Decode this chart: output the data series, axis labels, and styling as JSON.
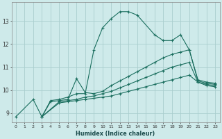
{
  "title": "",
  "xlabel": "Humidex (Indice chaleur)",
  "ylabel": "",
  "bg_color": "#ceeaea",
  "grid_color": "#aacece",
  "line_color": "#1a6e5e",
  "xlim": [
    -0.5,
    23.5
  ],
  "ylim": [
    8.6,
    13.8
  ],
  "xticks": [
    0,
    1,
    2,
    3,
    4,
    5,
    6,
    7,
    8,
    9,
    10,
    11,
    12,
    13,
    14,
    15,
    16,
    17,
    18,
    19,
    20,
    21,
    22,
    23
  ],
  "yticks": [
    9,
    10,
    11,
    12,
    13
  ],
  "lines": [
    {
      "x": [
        0,
        2,
        3,
        4,
        5,
        6,
        7,
        8,
        9,
        10,
        11,
        12,
        13,
        14,
        16,
        17,
        18,
        19,
        20,
        21,
        22,
        23
      ],
      "y": [
        8.85,
        9.6,
        8.85,
        9.55,
        9.6,
        9.7,
        9.85,
        9.85,
        11.75,
        12.7,
        13.1,
        13.4,
        13.4,
        13.25,
        12.4,
        12.15,
        12.15,
        12.4,
        11.75,
        10.45,
        10.35,
        10.3
      ]
    },
    {
      "x": [
        3,
        4,
        5,
        6,
        7,
        8,
        9,
        10,
        11,
        12,
        13,
        14,
        15,
        16,
        17,
        18,
        19,
        20,
        21,
        22,
        23
      ],
      "y": [
        8.85,
        9.5,
        9.55,
        9.6,
        10.5,
        9.9,
        9.85,
        9.95,
        10.2,
        10.4,
        10.6,
        10.8,
        11.0,
        11.2,
        11.4,
        11.55,
        11.65,
        11.75,
        10.4,
        10.3,
        10.25
      ]
    },
    {
      "x": [
        3,
        5,
        6,
        7,
        8,
        9,
        10,
        11,
        12,
        13,
        14,
        15,
        16,
        17,
        18,
        19,
        20,
        21,
        22,
        23
      ],
      "y": [
        8.85,
        9.5,
        9.55,
        9.6,
        9.7,
        9.75,
        9.85,
        9.95,
        10.1,
        10.25,
        10.4,
        10.55,
        10.7,
        10.85,
        11.0,
        11.1,
        11.2,
        10.35,
        10.25,
        10.2
      ]
    },
    {
      "x": [
        3,
        5,
        6,
        7,
        8,
        9,
        10,
        11,
        12,
        13,
        14,
        15,
        16,
        17,
        18,
        19,
        20,
        21,
        22,
        23
      ],
      "y": [
        8.85,
        9.45,
        9.5,
        9.55,
        9.6,
        9.65,
        9.7,
        9.75,
        9.85,
        9.95,
        10.05,
        10.15,
        10.25,
        10.35,
        10.45,
        10.55,
        10.65,
        10.35,
        10.2,
        10.15
      ]
    }
  ]
}
